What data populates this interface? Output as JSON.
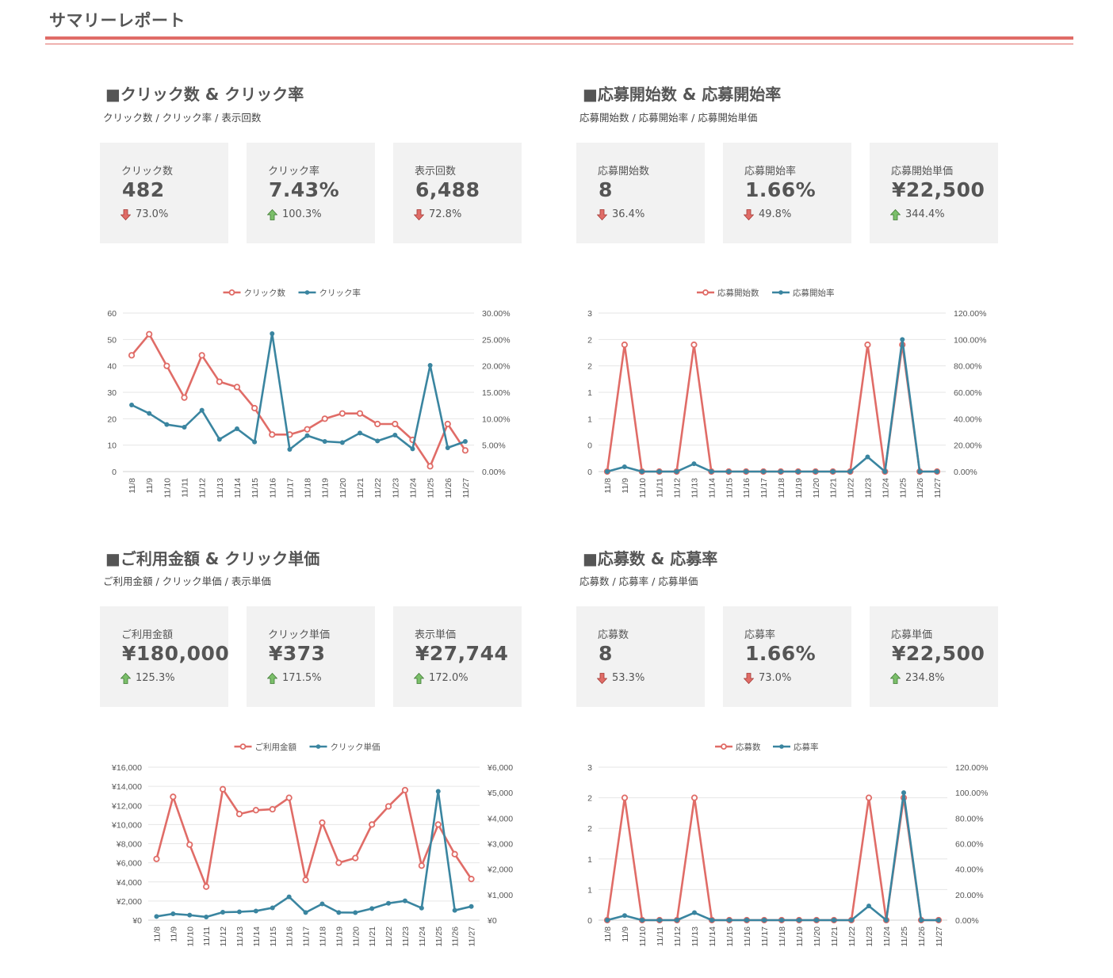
{
  "page": {
    "title": "サマリーレポート"
  },
  "colors": {
    "accent": "#e06c67",
    "series_red": "#e06c67",
    "series_blue": "#3a85a0",
    "card_bg": "#f2f2f2",
    "up_arrow": "#7bbf6a",
    "down_arrow": "#e06c67"
  },
  "sections": [
    {
      "title": "■クリック数 & クリック率",
      "subtitle": "クリック数 / クリック率 / 表示回数",
      "kpis": [
        {
          "label": "クリック数",
          "value": "482",
          "delta": "73.0%",
          "direction": "down"
        },
        {
          "label": "クリック率",
          "value": "7.43%",
          "delta": "100.3%",
          "direction": "up"
        },
        {
          "label": "表示回数",
          "value": "6,488",
          "delta": "72.8%",
          "direction": "down"
        }
      ]
    },
    {
      "title": "■応募開始数 & 応募開始率",
      "subtitle": "応募開始数 / 応募開始率 / 応募開始単価",
      "kpis": [
        {
          "label": "応募開始数",
          "value": "8",
          "delta": "36.4%",
          "direction": "down"
        },
        {
          "label": "応募開始率",
          "value": "1.66%",
          "delta": "49.8%",
          "direction": "down"
        },
        {
          "label": "応募開始単価",
          "value": "¥22,500",
          "delta": "344.4%",
          "direction": "up"
        }
      ]
    },
    {
      "title": "■ご利用金額 & クリック単価",
      "subtitle": "ご利用金額 / クリック単価 / 表示単価",
      "kpis": [
        {
          "label": "ご利用金額",
          "value": "¥180,000",
          "delta": "125.3%",
          "direction": "up"
        },
        {
          "label": "クリック単価",
          "value": "¥373",
          "delta": "171.5%",
          "direction": "up"
        },
        {
          "label": "表示単価",
          "value": "¥27,744",
          "delta": "172.0%",
          "direction": "up"
        }
      ]
    },
    {
      "title": "■応募数 & 応募率",
      "subtitle": "応募数 / 応募率 / 応募単価",
      "kpis": [
        {
          "label": "応募数",
          "value": "8",
          "delta": "53.3%",
          "direction": "down"
        },
        {
          "label": "応募率",
          "value": "1.66%",
          "delta": "73.0%",
          "direction": "down"
        },
        {
          "label": "応募単価",
          "value": "¥22,500",
          "delta": "234.8%",
          "direction": "up"
        }
      ]
    }
  ],
  "chart_data": [
    {
      "type": "line",
      "title": "",
      "categories": [
        "11/8",
        "11/9",
        "11/10",
        "11/11",
        "11/12",
        "11/13",
        "11/14",
        "11/15",
        "11/16",
        "11/17",
        "11/18",
        "11/19",
        "11/20",
        "11/21",
        "11/22",
        "11/23",
        "11/24",
        "11/25",
        "11/26",
        "11/27"
      ],
      "series": [
        {
          "name": "クリック数",
          "axis": "left",
          "values": [
            44,
            52,
            40,
            28,
            44,
            34,
            32,
            24,
            14,
            14,
            16,
            20,
            22,
            22,
            18,
            18,
            12,
            2,
            18,
            8
          ]
        },
        {
          "name": "クリック率",
          "axis": "right",
          "values": [
            12.6,
            11.0,
            8.9,
            8.4,
            11.6,
            6.1,
            8.1,
            5.6,
            26.1,
            4.2,
            6.8,
            5.7,
            5.5,
            7.3,
            5.8,
            6.9,
            4.3,
            20.1,
            4.5,
            5.7
          ]
        }
      ],
      "left_ticks": [
        "0",
        "10",
        "20",
        "30",
        "40",
        "50",
        "60"
      ],
      "left_range": [
        0,
        60
      ],
      "right_ticks": [
        "0.00%",
        "5.00%",
        "10.00%",
        "15.00%",
        "20.00%",
        "25.00%",
        "30.00%"
      ],
      "right_range": [
        0,
        30
      ],
      "grid": true,
      "legend": "top-center"
    },
    {
      "type": "line",
      "title": "",
      "categories": [
        "11/8",
        "11/9",
        "11/10",
        "11/11",
        "11/12",
        "11/13",
        "11/14",
        "11/15",
        "11/16",
        "11/17",
        "11/18",
        "11/19",
        "11/20",
        "11/21",
        "11/22",
        "11/23",
        "11/24",
        "11/25",
        "11/26",
        "11/27"
      ],
      "series": [
        {
          "name": "応募開始数",
          "axis": "left",
          "values": [
            0,
            2,
            0,
            0,
            0,
            2,
            0,
            0,
            0,
            0,
            0,
            0,
            0,
            0,
            0,
            2,
            0,
            2,
            0,
            0
          ]
        },
        {
          "name": "応募開始率",
          "axis": "right",
          "values": [
            0,
            3.6,
            0,
            0,
            0,
            5.9,
            0,
            0,
            0,
            0,
            0,
            0,
            0,
            0,
            0,
            11.1,
            0,
            100,
            0,
            0
          ]
        }
      ],
      "left_ticks": [
        "0",
        "0",
        "1",
        "1",
        "2",
        "2",
        "3"
      ],
      "left_range": [
        0,
        2.5
      ],
      "right_ticks": [
        "0.00%",
        "20.00%",
        "40.00%",
        "60.00%",
        "80.00%",
        "100.00%",
        "120.00%"
      ],
      "right_range": [
        0,
        120
      ],
      "grid": true,
      "legend": "top-center"
    },
    {
      "type": "line",
      "title": "",
      "categories": [
        "11/8",
        "11/9",
        "11/10",
        "11/11",
        "11/12",
        "11/13",
        "11/14",
        "11/15",
        "11/16",
        "11/17",
        "11/18",
        "11/19",
        "11/20",
        "11/21",
        "11/22",
        "11/23",
        "11/24",
        "11/25",
        "11/26",
        "11/27"
      ],
      "series": [
        {
          "name": "ご利用金額",
          "axis": "left",
          "values": [
            6400,
            12900,
            7900,
            3500,
            13700,
            11100,
            11500,
            11600,
            12800,
            4200,
            10200,
            6000,
            6500,
            10000,
            11900,
            13600,
            5700,
            10000,
            6900,
            4300
          ]
        },
        {
          "name": "クリック単価",
          "axis": "right",
          "values": [
            145,
            248,
            198,
            125,
            311,
            326,
            359,
            483,
            914,
            300,
            638,
            300,
            295,
            455,
            661,
            756,
            475,
            5050,
            383,
            538
          ]
        }
      ],
      "left_ticks": [
        "¥0",
        "¥2,000",
        "¥4,000",
        "¥6,000",
        "¥8,000",
        "¥10,000",
        "¥12,000",
        "¥14,000",
        "¥16,000"
      ],
      "left_range": [
        0,
        16000
      ],
      "right_ticks": [
        "¥0",
        "¥1,000",
        "¥2,000",
        "¥3,000",
        "¥4,000",
        "¥5,000",
        "¥6,000"
      ],
      "right_range": [
        0,
        6000
      ],
      "grid": true,
      "legend": "top-center"
    },
    {
      "type": "line",
      "title": "",
      "categories": [
        "11/8",
        "11/9",
        "11/10",
        "11/11",
        "11/12",
        "11/13",
        "11/14",
        "11/15",
        "11/16",
        "11/17",
        "11/18",
        "11/19",
        "11/20",
        "11/21",
        "11/22",
        "11/23",
        "11/24",
        "11/25",
        "11/26",
        "11/27"
      ],
      "series": [
        {
          "name": "応募数",
          "axis": "left",
          "values": [
            0,
            2,
            0,
            0,
            0,
            2,
            0,
            0,
            0,
            0,
            0,
            0,
            0,
            0,
            0,
            2,
            0,
            2,
            0,
            0
          ]
        },
        {
          "name": "応募率",
          "axis": "right",
          "values": [
            0,
            3.6,
            0,
            0,
            0,
            5.9,
            0,
            0,
            0,
            0,
            0,
            0,
            0,
            0,
            0,
            11.1,
            0,
            100,
            0,
            0
          ]
        }
      ],
      "left_ticks": [
        "0",
        "1",
        "1",
        "2",
        "2",
        "3"
      ],
      "left_range": [
        0,
        2.5
      ],
      "right_ticks": [
        "0.00%",
        "20.00%",
        "40.00%",
        "60.00%",
        "80.00%",
        "100.00%",
        "120.00%"
      ],
      "right_range": [
        0,
        120
      ],
      "grid": true,
      "legend": "top-center"
    }
  ]
}
